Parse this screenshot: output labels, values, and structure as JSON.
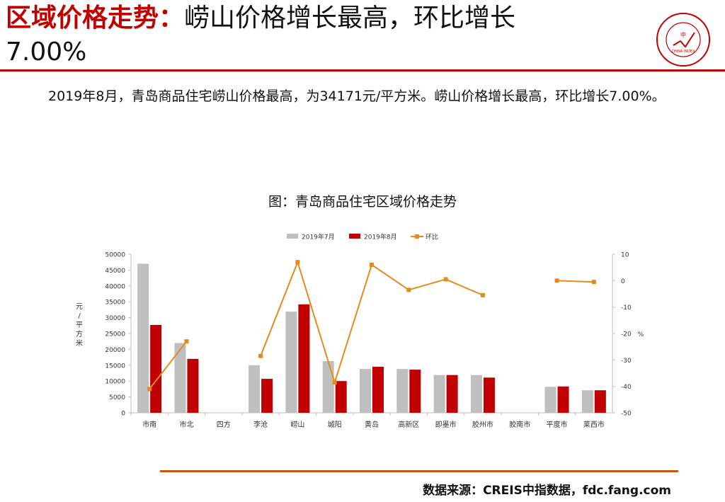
{
  "page": {
    "title_prefix": "区域价格走势：",
    "title_main": "崂山价格增长最高，环比增长",
    "title_line2": "7.00%",
    "paragraph": "2019年8月，青岛商品住宅崂山价格最高，为34171元/平方米。崂山价格增长最高，环比增长7.00%。",
    "chart_caption": "图：青岛商品住宅区域价格走势",
    "source": "数据来源：CREIS中指数据，fdc.fang.com",
    "logo_text": "中指研究院 CHINA INDEX ACADEMY"
  },
  "colors": {
    "title_red": "#c00000",
    "bar_jul": "#bfbfbf",
    "bar_aug": "#c00000",
    "line_mom": "#e38b1f",
    "footer_rule": "#c55a11"
  },
  "chart_data": {
    "type": "bar",
    "categories": [
      "市南",
      "市北",
      "四方",
      "李沧",
      "崂山",
      "城阳",
      "黄岛",
      "高新区",
      "即墨市",
      "胶州市",
      "胶南市",
      "平度市",
      "莱西市"
    ],
    "series": [
      {
        "name": "2019年7月",
        "type": "bar",
        "axis": "left",
        "values": [
          47000,
          22000,
          null,
          15000,
          31900,
          16300,
          13800,
          13800,
          11900,
          11900,
          null,
          8200,
          7100
        ]
      },
      {
        "name": "2019年8月",
        "type": "bar",
        "axis": "left",
        "values": [
          27700,
          17000,
          null,
          10700,
          34171,
          10000,
          14500,
          13600,
          11900,
          11100,
          null,
          8300,
          7100
        ]
      },
      {
        "name": "环比",
        "type": "line",
        "axis": "right",
        "values": [
          -41,
          -23,
          null,
          -28.5,
          7,
          -38.5,
          6,
          -3.5,
          0.5,
          -5.5,
          null,
          0,
          -0.5
        ]
      }
    ],
    "ylabel_left": "元/平方米",
    "ylabel_right": "%",
    "ylim_left": [
      0,
      50000
    ],
    "yticks_left": [
      "0",
      "5000",
      "10000",
      "15000",
      "20000",
      "25000",
      "30000",
      "35000",
      "40000",
      "45000",
      "50000"
    ],
    "ylim_right": [
      -50,
      10
    ],
    "yticks_right": [
      "-50",
      "-40",
      "-30",
      "-20",
      "-10",
      "0",
      "10"
    ],
    "legend_position": "top",
    "grid": false
  }
}
